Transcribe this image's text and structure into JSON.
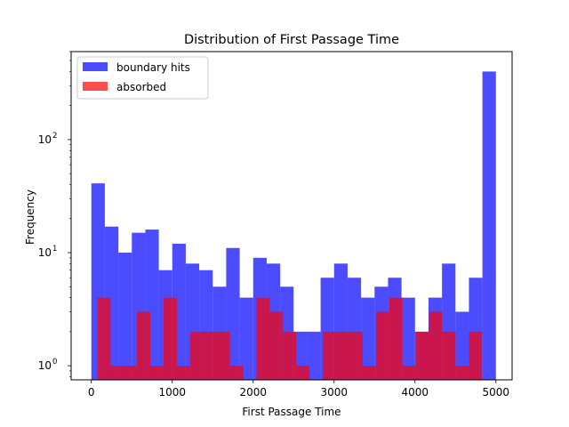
{
  "chart_data": {
    "type": "bar",
    "title": "Distribution of First Passage Time",
    "xlabel": "First Passage Time",
    "ylabel": "Frequency",
    "xlim": [
      -250,
      5200
    ],
    "ylim": [
      0.75,
      600
    ],
    "yscale": "log",
    "x_ticks": [
      0,
      1000,
      2000,
      3000,
      4000,
      5000
    ],
    "y_ticks": [
      1,
      10,
      100
    ],
    "bin_width": 166.67,
    "grid": false,
    "legend": "top-left",
    "series": [
      {
        "name": "boundary hits",
        "color": "#0000ff",
        "alpha": 0.7,
        "bin_starts": [
          0,
          166.67,
          333.33,
          500,
          666.67,
          833.33,
          1000,
          1166.67,
          1333.33,
          1500,
          1666.67,
          1833.33,
          2000,
          2166.67,
          2333.33,
          2500,
          2666.67,
          2833.33,
          3000,
          3166.67,
          3333.33,
          3500,
          3666.67,
          3833.33,
          4000,
          4166.67,
          4333.33,
          4500,
          4666.67,
          4833.33
        ],
        "values": [
          41,
          17,
          10,
          15,
          16,
          7,
          12,
          8,
          7,
          5,
          11,
          4,
          9,
          8,
          5,
          2,
          2,
          6,
          8,
          6,
          4,
          5,
          6,
          4,
          2,
          4,
          8,
          3,
          6,
          400
        ]
      },
      {
        "name": "absorbed",
        "color": "#ff0000",
        "alpha": 0.7,
        "bin_starts": [
          73,
          237,
          401,
          565,
          729,
          893,
          1057,
          1221,
          1385,
          1549,
          1713,
          1877,
          2041,
          2205,
          2369,
          2533,
          2697,
          2861,
          3025,
          3189,
          3353,
          3517,
          3681,
          3845,
          4009,
          4173,
          4337,
          4501,
          4665,
          4829
        ],
        "values": [
          4,
          1,
          1,
          3,
          1,
          4,
          1,
          2,
          2,
          2,
          1,
          0,
          4,
          3,
          2,
          1,
          0,
          2,
          2,
          2,
          1,
          3,
          4,
          1,
          2,
          3,
          2,
          1,
          2,
          0
        ],
        "bin_width": 164
      }
    ]
  }
}
